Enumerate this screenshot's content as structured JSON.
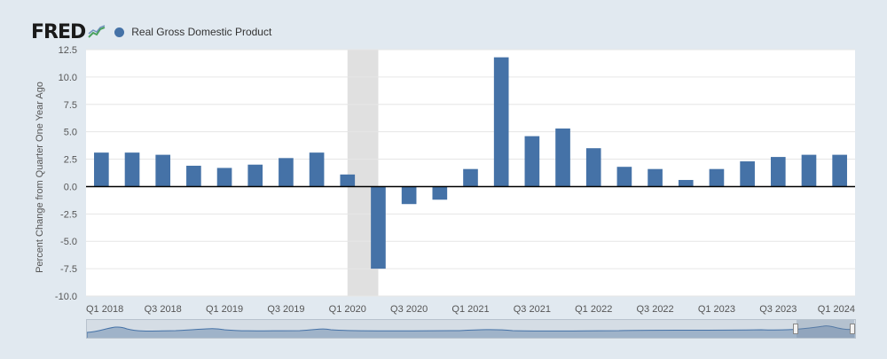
{
  "header": {
    "logo_text": "FRED",
    "logo_icon": "fred-chart-logo-icon"
  },
  "colors": {
    "series": "#4572a7",
    "recession": "#e0e0e0",
    "background": "#e1e9f0",
    "plot": "#ffffff"
  },
  "chart_data": {
    "type": "bar",
    "title": "",
    "xlabel": "",
    "ylabel": "Percent Change from Quarter One Year Ago",
    "ylim": [
      -10.0,
      12.5
    ],
    "yticks": [
      "12.5",
      "10.0",
      "7.5",
      "5.0",
      "2.5",
      "0.0",
      "-2.5",
      "-5.0",
      "-7.5",
      "-10.0"
    ],
    "grid": true,
    "legend_position": "top-left",
    "categories": [
      "Q1 2018",
      "Q2 2018",
      "Q3 2018",
      "Q4 2018",
      "Q1 2019",
      "Q2 2019",
      "Q3 2019",
      "Q4 2019",
      "Q1 2020",
      "Q2 2020",
      "Q3 2020",
      "Q4 2020",
      "Q1 2021",
      "Q2 2021",
      "Q3 2021",
      "Q4 2021",
      "Q1 2022",
      "Q2 2022",
      "Q3 2022",
      "Q4 2022",
      "Q1 2023",
      "Q2 2023",
      "Q3 2023",
      "Q4 2023",
      "Q1 2024"
    ],
    "xtick_labels": [
      "Q1 2018",
      "Q3 2018",
      "Q1 2019",
      "Q3 2019",
      "Q1 2020",
      "Q3 2020",
      "Q1 2021",
      "Q3 2021",
      "Q1 2022",
      "Q3 2022",
      "Q1 2023",
      "Q3 2023",
      "Q1 2024"
    ],
    "series": [
      {
        "name": "Real Gross Domestic Product",
        "values": [
          3.1,
          3.1,
          2.9,
          1.9,
          1.7,
          2.0,
          2.6,
          3.1,
          1.1,
          -7.5,
          -1.6,
          -1.2,
          1.6,
          11.8,
          4.6,
          5.3,
          3.5,
          1.8,
          1.6,
          0.6,
          1.6,
          2.3,
          2.7,
          2.9,
          2.9
        ]
      }
    ],
    "recession_shading": [
      "Q1 2020",
      "Q2 2020"
    ]
  }
}
